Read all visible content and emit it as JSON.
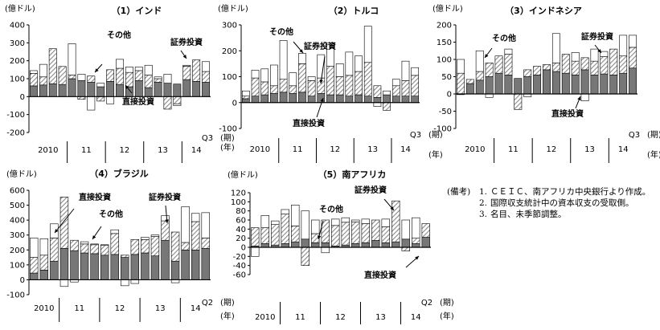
{
  "colors": {
    "direct": "#777777",
    "portfolio_hatch": "#8a8a8a",
    "other": "#ffffff",
    "axis": "#000000"
  },
  "notes": {
    "label": "(備考)",
    "items": [
      {
        "num": "1.",
        "text": "ＣＥＩＣ、南アフリカ中央銀行より作成。"
      },
      {
        "num": "2.",
        "text": "国際収支統計中の資本収支の受取側。"
      },
      {
        "num": "3.",
        "text": "名目、未季節調整。"
      }
    ]
  },
  "chart_data": [
    {
      "type": "bar",
      "stacked": true,
      "title": "（1）インド",
      "unit_label": "(億ドル)",
      "ylim": [
        -200,
        400
      ],
      "yticks": [
        -200,
        -100,
        0,
        100,
        200,
        300,
        400
      ],
      "period_label": "Q3",
      "period_unit": "(期)",
      "year_unit": "(年)",
      "years": [
        "2010",
        "11",
        "12",
        "13",
        "14"
      ],
      "annotations": [
        "その他",
        "証券投資",
        "直接投資"
      ],
      "series": [
        {
          "key": "direct",
          "values": [
            60,
            65,
            72,
            68,
            100,
            90,
            80,
            55,
            85,
            68,
            55,
            90,
            50,
            80,
            75,
            70,
            95,
            85,
            80
          ]
        },
        {
          "key": "portfolio",
          "values": [
            70,
            45,
            195,
            100,
            20,
            -15,
            35,
            -25,
            65,
            90,
            80,
            55,
            70,
            20,
            -70,
            -40,
            75,
            120,
            60
          ]
        },
        {
          "key": "other",
          "values": [
            15,
            70,
            0,
            0,
            175,
            35,
            -75,
            20,
            -40,
            50,
            30,
            20,
            55,
            10,
            50,
            -10,
            5,
            0,
            55
          ]
        }
      ]
    },
    {
      "type": "bar",
      "stacked": true,
      "title": "（2）トルコ",
      "unit_label": "(億ドル)",
      "ylim": [
        -100,
        300
      ],
      "yticks": [
        -100,
        0,
        100,
        200,
        300
      ],
      "period_label": "Q3",
      "period_unit": "(期)",
      "year_unit": "(年)",
      "years": [
        "2010",
        "11",
        "12",
        "13",
        "14"
      ],
      "annotations": [
        "その他",
        "証券投資",
        "直接投資"
      ],
      "series": [
        {
          "key": "direct",
          "values": [
            15,
            25,
            30,
            35,
            40,
            35,
            40,
            25,
            35,
            30,
            30,
            25,
            30,
            25,
            20,
            30,
            25,
            25,
            25
          ]
        },
        {
          "key": "portfolio",
          "values": [
            10,
            70,
            50,
            30,
            50,
            30,
            110,
            60,
            60,
            110,
            70,
            80,
            90,
            130,
            45,
            -30,
            40,
            60,
            80
          ]
        },
        {
          "key": "other",
          "values": [
            20,
            30,
            50,
            80,
            150,
            50,
            40,
            15,
            90,
            90,
            50,
            90,
            60,
            140,
            -15,
            15,
            25,
            75,
            30
          ]
        }
      ]
    },
    {
      "type": "bar",
      "stacked": true,
      "title": "（3）インドネシア",
      "unit_label": "(億ドル)",
      "ylim": [
        -100,
        200
      ],
      "yticks": [
        -100,
        -50,
        0,
        50,
        100,
        150,
        200
      ],
      "period_label": "Q3",
      "period_unit": "(期)",
      "year_unit": "(年)",
      "years": [
        "2010",
        "11",
        "12",
        "13",
        "14"
      ],
      "annotations": [
        "その他",
        "証券投資",
        "直接投資"
      ],
      "series": [
        {
          "key": "direct",
          "values": [
            -2,
            30,
            40,
            50,
            60,
            55,
            45,
            50,
            55,
            70,
            65,
            60,
            55,
            70,
            55,
            58,
            55,
            60,
            75
          ]
        },
        {
          "key": "portfolio",
          "values": [
            60,
            12,
            25,
            40,
            50,
            60,
            -45,
            20,
            25,
            15,
            25,
            55,
            40,
            35,
            40,
            50,
            75,
            50,
            60
          ]
        },
        {
          "key": "other",
          "values": [
            40,
            0,
            60,
            -10,
            0,
            15,
            0,
            -8,
            0,
            0,
            85,
            0,
            25,
            -20,
            35,
            15,
            0,
            60,
            35
          ]
        }
      ]
    },
    {
      "type": "bar",
      "stacked": true,
      "title": "（4）ブラジル",
      "unit_label": "(億ドル)",
      "ylim": [
        -100,
        600
      ],
      "yticks": [
        -100,
        0,
        100,
        200,
        300,
        400,
        500,
        600
      ],
      "period_label": "Q2",
      "period_unit": "(期)",
      "year_unit": "(年)",
      "years": [
        "2010",
        "11",
        "12",
        "13",
        "14"
      ],
      "annotations": [
        "直接投資",
        "その他",
        "証券投資"
      ],
      "series": [
        {
          "key": "direct",
          "values": [
            45,
            65,
            125,
            210,
            195,
            180,
            175,
            165,
            170,
            150,
            170,
            180,
            160,
            265,
            125,
            200,
            200,
            210
          ]
        },
        {
          "key": "portfolio",
          "values": [
            105,
            100,
            155,
            345,
            70,
            60,
            60,
            65,
            140,
            15,
            100,
            90,
            130,
            130,
            195,
            50,
            190,
            70
          ]
        },
        {
          "key": "other",
          "values": [
            130,
            110,
            95,
            -45,
            -15,
            15,
            5,
            5,
            25,
            -40,
            -25,
            15,
            10,
            35,
            -20,
            240,
            55,
            170
          ]
        }
      ]
    },
    {
      "type": "bar",
      "stacked": true,
      "title": "（5）南アフリカ",
      "unit_label": "(億ドル)",
      "ylim": [
        -60,
        120
      ],
      "yticks": [
        -60,
        -40,
        -20,
        0,
        20,
        40,
        60,
        80,
        100,
        120
      ],
      "period_label": "Q2",
      "period_unit": "(期)",
      "year_unit": "(年)",
      "years": [
        "2010",
        "11",
        "12",
        "13",
        "14"
      ],
      "annotations": [
        "その他",
        "証券投資",
        "直接投資"
      ],
      "series": [
        {
          "key": "direct",
          "values": [
            3,
            8,
            5,
            8,
            12,
            18,
            10,
            10,
            3,
            5,
            8,
            10,
            15,
            10,
            12,
            18,
            8,
            22
          ]
        },
        {
          "key": "portfolio",
          "values": [
            40,
            35,
            45,
            65,
            35,
            -40,
            20,
            50,
            45,
            50,
            48,
            42,
            45,
            35,
            90,
            -8,
            12,
            30
          ]
        },
        {
          "key": "other",
          "values": [
            -20,
            27,
            8,
            10,
            46,
            62,
            30,
            -12,
            14,
            10,
            4,
            10,
            0,
            17,
            0,
            42,
            45,
            0
          ]
        }
      ]
    }
  ]
}
